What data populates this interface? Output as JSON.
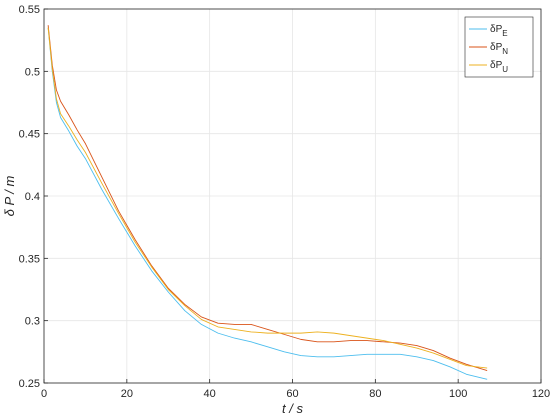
{
  "chart_data": {
    "type": "line",
    "xlabel": "t  / s",
    "ylabel": "δ P / m",
    "xlim": [
      0,
      120
    ],
    "ylim": [
      0.25,
      0.55
    ],
    "xticks": [
      0,
      20,
      40,
      60,
      80,
      100,
      120
    ],
    "yticks": [
      0.25,
      0.3,
      0.35,
      0.4,
      0.45,
      0.5,
      0.55
    ],
    "grid": true,
    "legend_position": "top-right",
    "series": [
      {
        "name": "δP_E",
        "legend": {
          "main": "δP",
          "sub": "E"
        },
        "color": "#4DBEEE",
        "x": [
          1,
          2,
          3,
          4,
          6,
          8,
          10,
          14,
          18,
          22,
          26,
          30,
          34,
          38,
          42,
          46,
          50,
          54,
          58,
          62,
          66,
          70,
          74,
          78,
          82,
          86,
          90,
          94,
          98,
          102,
          107
        ],
        "y": [
          0.535,
          0.5,
          0.475,
          0.463,
          0.452,
          0.44,
          0.43,
          0.405,
          0.382,
          0.36,
          0.34,
          0.323,
          0.308,
          0.297,
          0.29,
          0.286,
          0.283,
          0.279,
          0.275,
          0.272,
          0.271,
          0.271,
          0.272,
          0.273,
          0.273,
          0.273,
          0.271,
          0.268,
          0.263,
          0.257,
          0.253
        ]
      },
      {
        "name": "δP_N",
        "legend": {
          "main": "δP",
          "sub": "N"
        },
        "color": "#D95319",
        "x": [
          1,
          2,
          3,
          4,
          6,
          8,
          10,
          14,
          18,
          22,
          26,
          30,
          34,
          38,
          42,
          46,
          50,
          54,
          58,
          62,
          66,
          70,
          74,
          78,
          82,
          86,
          90,
          94,
          98,
          102,
          107
        ],
        "y": [
          0.537,
          0.505,
          0.485,
          0.476,
          0.465,
          0.453,
          0.442,
          0.415,
          0.388,
          0.365,
          0.344,
          0.326,
          0.313,
          0.303,
          0.298,
          0.297,
          0.297,
          0.293,
          0.289,
          0.285,
          0.283,
          0.283,
          0.284,
          0.284,
          0.283,
          0.282,
          0.28,
          0.276,
          0.27,
          0.265,
          0.26
        ]
      },
      {
        "name": "δP_U",
        "legend": {
          "main": "δP",
          "sub": "U"
        },
        "color": "#EDB120",
        "x": [
          1,
          2,
          3,
          4,
          6,
          8,
          10,
          14,
          18,
          22,
          26,
          30,
          34,
          38,
          42,
          46,
          50,
          54,
          58,
          62,
          66,
          70,
          74,
          78,
          82,
          86,
          90,
          94,
          98,
          102,
          107
        ],
        "y": [
          0.535,
          0.502,
          0.478,
          0.466,
          0.456,
          0.445,
          0.435,
          0.41,
          0.386,
          0.363,
          0.343,
          0.325,
          0.312,
          0.301,
          0.295,
          0.293,
          0.291,
          0.29,
          0.29,
          0.29,
          0.291,
          0.29,
          0.288,
          0.286,
          0.284,
          0.281,
          0.278,
          0.274,
          0.269,
          0.264,
          0.262
        ]
      }
    ]
  }
}
